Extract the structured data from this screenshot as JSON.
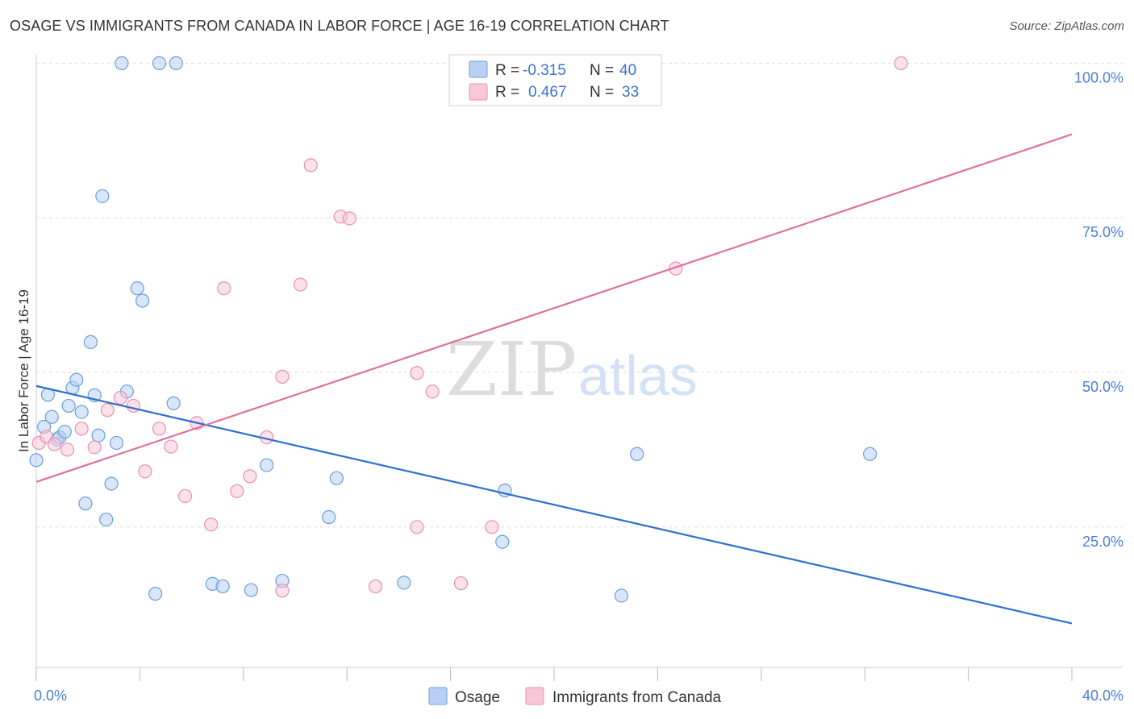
{
  "title": "OSAGE VS IMMIGRANTS FROM CANADA IN LABOR FORCE | AGE 16-19 CORRELATION CHART",
  "source": "Source: ZipAtlas.com",
  "watermark": {
    "part1": "ZIP",
    "part2": "atlas"
  },
  "colors": {
    "osage_fill": "#b8d1f3",
    "osage_stroke": "#6a9ee0",
    "osage_line": "#2f6fd0",
    "canada_fill": "#f8c8d8",
    "canada_stroke": "#ea8fae",
    "canada_line": "#e0709a",
    "axis_label": "#4a7fd4",
    "grid": "#dddddd"
  },
  "legend": {
    "rows": [
      {
        "r_label": "R =",
        "r_value": "-0.315",
        "n_label": "N =",
        "n_value": "40"
      },
      {
        "r_label": "R =",
        "r_value": "0.467",
        "n_label": "N =",
        "n_value": "33"
      }
    ]
  },
  "chart_data": {
    "type": "scatter",
    "title": "OSAGE VS IMMIGRANTS FROM CANADA IN LABOR FORCE | AGE 16-19 CORRELATION CHART",
    "xlabel": "",
    "ylabel": "In Labor Force | Age 16-19",
    "xlim": [
      0,
      40
    ],
    "ylim": [
      0,
      102
    ],
    "x_tick_labels": [
      {
        "value": 0,
        "label": "0.0%"
      },
      {
        "value": 40,
        "label": "40.0%"
      }
    ],
    "y_tick_labels": [
      {
        "value": 25,
        "label": "25.0%"
      },
      {
        "value": 50,
        "label": "50.0%"
      },
      {
        "value": 75,
        "label": "75.0%"
      },
      {
        "value": 100,
        "label": "100.0%"
      }
    ],
    "series": [
      {
        "name": "Osage",
        "r": -0.315,
        "n": 40,
        "trend": {
          "x": [
            0,
            40
          ],
          "y": [
            47.8,
            9.4
          ]
        },
        "points": [
          {
            "x": 0.0,
            "y": 35.8
          },
          {
            "x": 0.3,
            "y": 41.2
          },
          {
            "x": 0.45,
            "y": 46.4
          },
          {
            "x": 0.6,
            "y": 42.8
          },
          {
            "x": 0.8,
            "y": 39.2
          },
          {
            "x": 0.9,
            "y": 39.5
          },
          {
            "x": 1.1,
            "y": 40.4
          },
          {
            "x": 1.25,
            "y": 44.6
          },
          {
            "x": 1.4,
            "y": 47.5
          },
          {
            "x": 1.55,
            "y": 48.8
          },
          {
            "x": 1.75,
            "y": 43.6
          },
          {
            "x": 1.9,
            "y": 28.8
          },
          {
            "x": 2.1,
            "y": 54.9
          },
          {
            "x": 2.25,
            "y": 46.3
          },
          {
            "x": 2.4,
            "y": 39.8
          },
          {
            "x": 2.55,
            "y": 78.5
          },
          {
            "x": 2.7,
            "y": 26.2
          },
          {
            "x": 2.9,
            "y": 32.0
          },
          {
            "x": 3.1,
            "y": 38.6
          },
          {
            "x": 3.3,
            "y": 100.0
          },
          {
            "x": 3.5,
            "y": 46.9
          },
          {
            "x": 3.9,
            "y": 63.6
          },
          {
            "x": 4.1,
            "y": 61.6
          },
          {
            "x": 4.6,
            "y": 14.2
          },
          {
            "x": 4.75,
            "y": 100.0
          },
          {
            "x": 5.3,
            "y": 45.0
          },
          {
            "x": 5.4,
            "y": 100.0
          },
          {
            "x": 6.8,
            "y": 15.8
          },
          {
            "x": 7.2,
            "y": 15.4
          },
          {
            "x": 8.3,
            "y": 14.8
          },
          {
            "x": 8.9,
            "y": 35.0
          },
          {
            "x": 9.5,
            "y": 16.3
          },
          {
            "x": 11.3,
            "y": 26.6
          },
          {
            "x": 11.6,
            "y": 32.9
          },
          {
            "x": 14.2,
            "y": 16.0
          },
          {
            "x": 18.1,
            "y": 30.9
          },
          {
            "x": 18.0,
            "y": 22.6
          },
          {
            "x": 22.6,
            "y": 13.9
          },
          {
            "x": 23.2,
            "y": 36.8
          },
          {
            "x": 32.2,
            "y": 36.8
          }
        ]
      },
      {
        "name": "Immigrants from Canada",
        "r": 0.467,
        "n": 33,
        "trend": {
          "x": [
            0,
            40
          ],
          "y": [
            32.3,
            88.5
          ]
        },
        "points": [
          {
            "x": 0.1,
            "y": 38.6
          },
          {
            "x": 0.4,
            "y": 39.6
          },
          {
            "x": 0.7,
            "y": 38.4
          },
          {
            "x": 1.2,
            "y": 37.5
          },
          {
            "x": 1.75,
            "y": 40.9
          },
          {
            "x": 2.25,
            "y": 37.9
          },
          {
            "x": 2.75,
            "y": 43.9
          },
          {
            "x": 3.25,
            "y": 45.9
          },
          {
            "x": 3.75,
            "y": 44.6
          },
          {
            "x": 4.2,
            "y": 34.0
          },
          {
            "x": 4.75,
            "y": 40.9
          },
          {
            "x": 5.2,
            "y": 38.0
          },
          {
            "x": 5.75,
            "y": 30.0
          },
          {
            "x": 6.2,
            "y": 41.8
          },
          {
            "x": 6.75,
            "y": 25.4
          },
          {
            "x": 7.25,
            "y": 63.6
          },
          {
            "x": 7.75,
            "y": 30.8
          },
          {
            "x": 8.25,
            "y": 33.2
          },
          {
            "x": 8.9,
            "y": 39.5
          },
          {
            "x": 9.5,
            "y": 49.3
          },
          {
            "x": 9.5,
            "y": 14.7
          },
          {
            "x": 10.2,
            "y": 64.2
          },
          {
            "x": 10.6,
            "y": 83.5
          },
          {
            "x": 11.75,
            "y": 75.2
          },
          {
            "x": 12.1,
            "y": 74.9
          },
          {
            "x": 13.1,
            "y": 15.4
          },
          {
            "x": 14.7,
            "y": 49.9
          },
          {
            "x": 14.7,
            "y": 25.0
          },
          {
            "x": 15.3,
            "y": 46.9
          },
          {
            "x": 16.4,
            "y": 15.9
          },
          {
            "x": 17.6,
            "y": 25.0
          },
          {
            "x": 24.7,
            "y": 66.8
          },
          {
            "x": 33.4,
            "y": 100.0
          }
        ]
      }
    ]
  }
}
